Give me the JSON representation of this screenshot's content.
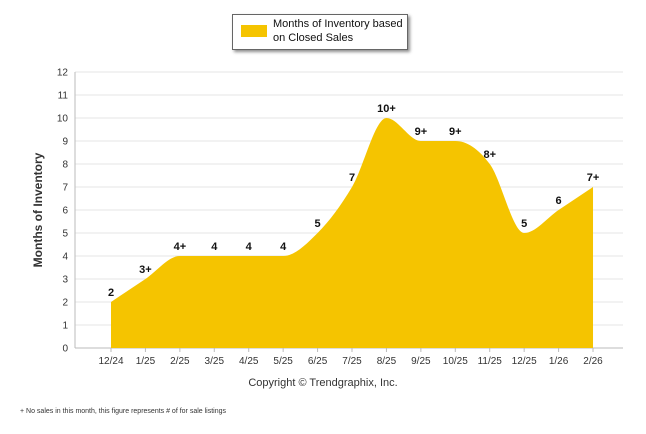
{
  "chart_data": {
    "type": "area",
    "title": "",
    "ylabel": "Months of Inventory",
    "xlabel": "",
    "ylim": [
      0,
      12
    ],
    "yticks": [
      0,
      1,
      2,
      3,
      4,
      5,
      6,
      7,
      8,
      9,
      10,
      11,
      12
    ],
    "categories": [
      "12/24",
      "1/25",
      "2/25",
      "3/25",
      "4/25",
      "5/25",
      "6/25",
      "7/25",
      "8/25",
      "9/25",
      "10/25",
      "11/25",
      "12/25",
      "1/26",
      "2/26"
    ],
    "values": [
      2,
      3,
      4,
      4,
      4,
      4,
      5,
      7,
      10,
      9,
      9,
      8,
      5,
      6,
      7
    ],
    "labels": [
      "2",
      "3+",
      "4+",
      "4",
      "4",
      "4",
      "5",
      "7",
      "10+",
      "9+",
      "9+",
      "8+",
      "5",
      "6",
      "7+"
    ],
    "fill_color": "#f5c400",
    "legend": {
      "entries": [
        "Months of Inventory based on Closed Sales"
      ],
      "position": "top-center"
    }
  },
  "copyright": "Copyright © Trendgraphix, Inc.",
  "footnote": "+  No sales in this month, this figure represents # of for sale listings"
}
